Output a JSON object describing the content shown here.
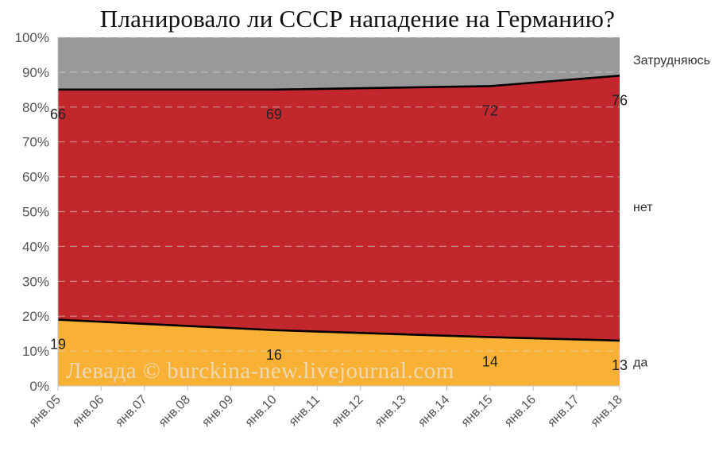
{
  "chart_data": {
    "type": "area",
    "title": "Планировало ли СССР нападение на Германию?",
    "categories": [
      "янв.05",
      "янв.06",
      "янв.07",
      "янв.08",
      "янв.09",
      "янв.10",
      "янв.11",
      "янв.12",
      "янв.13",
      "янв.14",
      "янв.15",
      "янв.16",
      "янв.17",
      "янв.18"
    ],
    "y_ticks": [
      "0%",
      "10%",
      "20%",
      "30%",
      "40%",
      "50%",
      "60%",
      "70%",
      "80%",
      "90%",
      "100%"
    ],
    "ylim": [
      0,
      100
    ],
    "stacked_percent": true,
    "grid": "horizontal dashed",
    "series": [
      {
        "name": "да",
        "color": "#F8B134",
        "x": [
          "янв.05",
          "янв.10",
          "янв.15",
          "янв.18"
        ],
        "values": [
          19,
          16,
          14,
          13
        ]
      },
      {
        "name": "нет",
        "color": "#C1272D",
        "x": [
          "янв.05",
          "янв.10",
          "янв.15",
          "янв.18"
        ],
        "values": [
          66,
          69,
          72,
          76
        ]
      },
      {
        "name": "Затрудняюсь",
        "color": "#999999",
        "x": [
          "янв.05",
          "янв.10",
          "янв.15",
          "янв.18"
        ],
        "values": [
          15,
          15,
          14,
          11
        ]
      }
    ],
    "data_labels": [
      {
        "series": "нет",
        "x": "янв.05",
        "text": "66"
      },
      {
        "series": "нет",
        "x": "янв.10",
        "text": "69"
      },
      {
        "series": "нет",
        "x": "янв.15",
        "text": "72"
      },
      {
        "series": "нет",
        "x": "янв.18",
        "text": "76"
      },
      {
        "series": "да",
        "x": "янв.05",
        "text": "19"
      },
      {
        "series": "да",
        "x": "янв.10",
        "text": "16"
      },
      {
        "series": "да",
        "x": "янв.15",
        "text": "14"
      },
      {
        "series": "да",
        "x": "янв.18",
        "text": "13"
      }
    ],
    "watermark": "Левада © burckina-new.livejournal.com"
  }
}
